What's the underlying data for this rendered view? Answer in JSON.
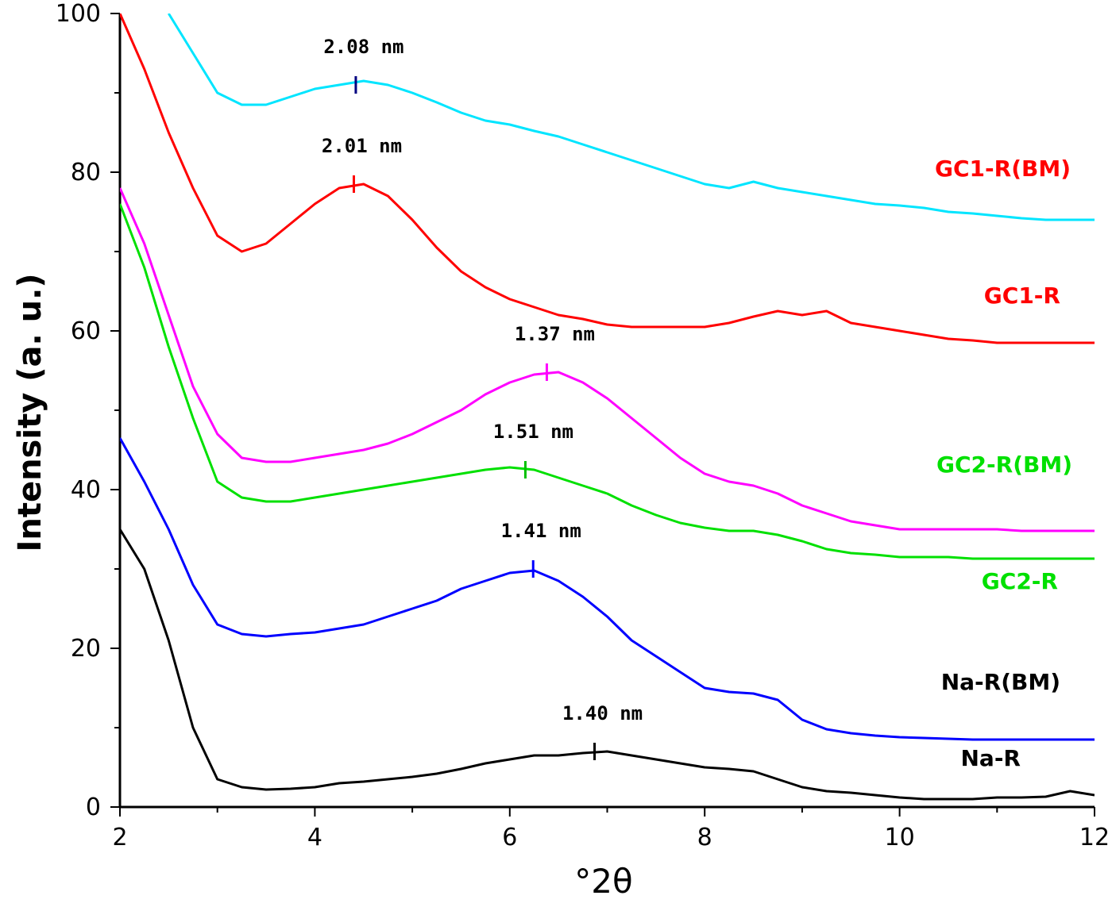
{
  "chart_data": {
    "type": "line",
    "xlabel": "°2θ",
    "ylabel": "Intensity (a. u.)",
    "x": [
      2,
      2.25,
      2.5,
      2.75,
      3,
      3.25,
      3.5,
      3.75,
      4,
      4.25,
      4.5,
      4.75,
      5,
      5.25,
      5.5,
      5.75,
      6,
      6.25,
      6.5,
      6.75,
      7,
      7.25,
      7.5,
      7.75,
      8,
      8.25,
      8.5,
      8.75,
      9,
      9.25,
      9.5,
      9.75,
      10,
      10.25,
      10.5,
      10.75,
      11,
      11.25,
      11.5,
      11.75,
      12
    ],
    "xlim": [
      2,
      12
    ],
    "xticks": [
      2,
      4,
      6,
      8,
      10,
      12
    ],
    "xminor": [
      3,
      5,
      7,
      9,
      11
    ],
    "ylim": [
      0,
      100
    ],
    "yticks": [
      0,
      20,
      40,
      60,
      80,
      100
    ],
    "yminor": [
      10,
      30,
      50,
      70,
      90
    ],
    "series": [
      {
        "name": "GC1-R(BM)",
        "color": "#00e5ff",
        "label_color": "#ff0000",
        "peak": {
          "label": "2.08 nm",
          "x": 4.42,
          "y": 91,
          "color": "#000080"
        },
        "values": [
          null,
          null,
          100,
          95,
          90,
          88.5,
          88.5,
          89.5,
          90.5,
          91,
          91.5,
          91,
          90,
          88.8,
          87.5,
          86.5,
          86,
          85.2,
          84.5,
          83.5,
          82.5,
          81.5,
          80.5,
          79.5,
          78.5,
          78,
          78.8,
          78,
          77.5,
          77,
          76.5,
          76,
          75.8,
          75.5,
          75,
          74.8,
          74.5,
          74.2,
          74,
          74,
          74
        ]
      },
      {
        "name": "GC1-R",
        "color": "#ff0000",
        "label_color": "#ff0000",
        "peak": {
          "label": "2.01 nm",
          "x": 4.4,
          "y": 78.5,
          "color": "#ff0000"
        },
        "values": [
          100,
          93,
          85,
          78,
          72,
          70,
          71,
          73.5,
          76,
          78,
          78.5,
          77,
          74,
          70.5,
          67.5,
          65.5,
          64,
          63,
          62,
          61.5,
          60.8,
          60.5,
          60.5,
          60.5,
          60.5,
          61,
          61.8,
          62.5,
          62,
          62.5,
          61,
          60.5,
          60,
          59.5,
          59,
          58.8,
          58.5,
          58.5,
          58.5,
          58.5,
          58.5
        ]
      },
      {
        "name": "GC2-R(BM)",
        "color": "#ff00ff",
        "label_color": "#00e000",
        "peak": {
          "label": "1.37 nm",
          "x": 6.38,
          "y": 54.8,
          "color": "#ff00ff"
        },
        "values": [
          78,
          71,
          62,
          53,
          47,
          44,
          43.5,
          43.5,
          44,
          44.5,
          45,
          45.8,
          47,
          48.5,
          50,
          52,
          53.5,
          54.5,
          54.8,
          53.5,
          51.5,
          49,
          46.5,
          44,
          42,
          41,
          40.5,
          39.5,
          38,
          37,
          36,
          35.5,
          35,
          35,
          35,
          35,
          35,
          34.8,
          34.8,
          34.8,
          34.8
        ]
      },
      {
        "name": "GC2-R",
        "color": "#00e000",
        "label_color": "#00e000",
        "peak": {
          "label": "1.51 nm",
          "x": 6.16,
          "y": 42.5,
          "color": "#00c000"
        },
        "values": [
          76,
          68,
          58,
          49,
          41,
          39,
          38.5,
          38.5,
          39,
          39.5,
          40,
          40.5,
          41,
          41.5,
          42,
          42.5,
          42.8,
          42.5,
          41.5,
          40.5,
          39.5,
          38,
          36.8,
          35.8,
          35.2,
          34.8,
          34.8,
          34.3,
          33.5,
          32.5,
          32,
          31.8,
          31.5,
          31.5,
          31.5,
          31.3,
          31.3,
          31.3,
          31.3,
          31.3,
          31.3
        ]
      },
      {
        "name": "Na-R(BM)",
        "color": "#0000ff",
        "label_color": "#000000",
        "peak": {
          "label": "1.41 nm",
          "x": 6.24,
          "y": 30,
          "color": "#0000ff"
        },
        "values": [
          46.5,
          41,
          35,
          28,
          23,
          21.8,
          21.5,
          21.8,
          22,
          22.5,
          23,
          24,
          25,
          26,
          27.5,
          28.5,
          29.5,
          29.8,
          28.5,
          26.5,
          24,
          21,
          19,
          17,
          15,
          14.5,
          14.3,
          13.5,
          11,
          9.8,
          9.3,
          9,
          8.8,
          8.7,
          8.6,
          8.5,
          8.5,
          8.5,
          8.5,
          8.5,
          8.5
        ]
      },
      {
        "name": "Na-R",
        "color": "#000000",
        "label_color": "#000000",
        "peak": {
          "label": "1.40 nm",
          "x": 6.87,
          "y": 7,
          "color": "#000000"
        },
        "values": [
          35,
          30,
          21,
          10,
          3.5,
          2.5,
          2.2,
          2.3,
          2.5,
          3,
          3.2,
          3.5,
          3.8,
          4.2,
          4.8,
          5.5,
          6,
          6.5,
          6.5,
          6.8,
          7,
          6.5,
          6,
          5.5,
          5,
          4.8,
          4.5,
          3.5,
          2.5,
          2,
          1.8,
          1.5,
          1.2,
          1,
          1,
          1,
          1.2,
          1.2,
          1.3,
          2,
          1.5
        ]
      }
    ]
  }
}
